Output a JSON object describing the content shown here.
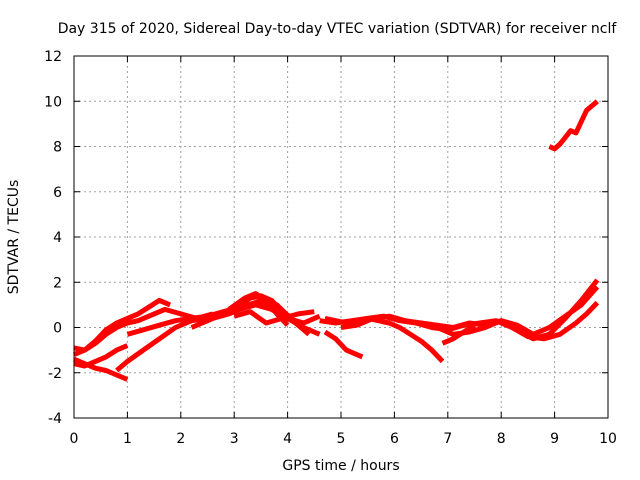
{
  "chart_data": {
    "type": "line",
    "title": "Day 315 of 2020, Sidereal Day-to-day VTEC variation (SDTVAR) for receiver nclf",
    "xlabel": "GPS time / hours",
    "ylabel": "SDTVAR / TECUs",
    "xlim": [
      0,
      10
    ],
    "ylim": [
      -4,
      12
    ],
    "xticks": [
      0,
      1,
      2,
      3,
      4,
      5,
      6,
      7,
      8,
      9,
      10
    ],
    "yticks": [
      -4,
      -2,
      0,
      2,
      4,
      6,
      8,
      10,
      12
    ],
    "grid": true,
    "color": "#ff0000",
    "series": [
      {
        "name": "trace-1",
        "x": [
          0.0,
          0.2,
          0.4,
          0.6,
          0.8,
          1.0,
          1.2,
          1.4,
          1.6,
          1.8
        ],
        "y": [
          -0.9,
          -1.0,
          -0.6,
          -0.1,
          0.2,
          0.4,
          0.6,
          0.9,
          1.2,
          1.0
        ]
      },
      {
        "name": "trace-2",
        "x": [
          0.0,
          0.2,
          0.4,
          0.6,
          0.8,
          1.0,
          1.2,
          1.4,
          1.7,
          2.0,
          2.3,
          2.6
        ],
        "y": [
          -1.2,
          -1.0,
          -0.7,
          -0.3,
          0.0,
          0.2,
          0.3,
          0.5,
          0.8,
          0.6,
          0.4,
          0.6
        ]
      },
      {
        "name": "trace-3",
        "x": [
          0.0,
          0.2,
          0.4,
          0.6,
          0.8,
          1.0
        ],
        "y": [
          -1.4,
          -1.6,
          -1.8,
          -1.9,
          -2.1,
          -2.3
        ]
      },
      {
        "name": "trace-4",
        "x": [
          0.0,
          0.2,
          0.4,
          0.6,
          0.8,
          1.0
        ],
        "y": [
          -1.6,
          -1.7,
          -1.5,
          -1.3,
          -1.0,
          -0.8
        ]
      },
      {
        "name": "trace-5",
        "x": [
          0.8,
          1.0,
          1.3,
          1.6,
          1.9,
          2.2,
          2.5,
          2.8,
          3.1,
          3.4,
          3.7,
          4.0,
          4.3,
          4.6
        ],
        "y": [
          -1.9,
          -1.5,
          -1.0,
          -0.5,
          0.0,
          0.3,
          0.4,
          0.6,
          0.8,
          1.0,
          0.8,
          0.4,
          0.2,
          0.5
        ]
      },
      {
        "name": "trace-6",
        "x": [
          1.0,
          1.3,
          1.6,
          1.9,
          2.2,
          2.5,
          2.8,
          3.1,
          3.4,
          3.7,
          4.0,
          4.3,
          4.6
        ],
        "y": [
          -0.3,
          -0.1,
          0.1,
          0.3,
          0.4,
          0.5,
          0.7,
          0.9,
          1.1,
          0.9,
          0.4,
          0.0,
          -0.3
        ]
      },
      {
        "name": "trace-7",
        "x": [
          2.2,
          2.5,
          2.8,
          3.1,
          3.3,
          3.5,
          3.7,
          3.9,
          4.1
        ],
        "y": [
          0.0,
          0.3,
          0.6,
          1.0,
          1.3,
          1.4,
          1.2,
          0.7,
          0.4
        ]
      },
      {
        "name": "trace-8",
        "x": [
          2.6,
          2.9,
          3.2,
          3.5,
          3.8,
          4.1,
          4.4
        ],
        "y": [
          0.4,
          0.6,
          0.9,
          1.2,
          1.0,
          0.3,
          -0.3
        ]
      },
      {
        "name": "trace-9",
        "x": [
          2.9,
          3.2,
          3.4,
          3.6,
          3.8,
          4.0
        ],
        "y": [
          0.8,
          1.3,
          1.5,
          1.2,
          0.6,
          0.1
        ]
      },
      {
        "name": "trace-10",
        "x": [
          3.0,
          3.3,
          3.6,
          3.9,
          4.2,
          4.5
        ],
        "y": [
          0.5,
          0.7,
          0.2,
          0.4,
          0.6,
          0.7
        ]
      },
      {
        "name": "trace-11",
        "x": [
          4.7,
          4.9,
          5.1,
          5.3,
          5.5,
          5.7,
          5.9,
          6.1,
          6.3,
          6.5,
          6.7,
          6.9
        ],
        "y": [
          0.4,
          0.3,
          0.2,
          0.3,
          0.4,
          0.3,
          0.2,
          0.0,
          -0.3,
          -0.6,
          -1.0,
          -1.5
        ]
      },
      {
        "name": "trace-12",
        "x": [
          4.7,
          4.9,
          5.1,
          5.4
        ],
        "y": [
          -0.2,
          -0.5,
          -1.0,
          -1.3
        ]
      },
      {
        "name": "trace-13",
        "x": [
          4.6,
          4.9,
          5.2,
          5.5,
          5.8,
          6.1,
          6.4,
          6.7,
          7.0,
          7.3,
          7.6,
          7.9,
          8.2,
          8.5,
          8.8,
          9.1,
          9.4,
          9.6,
          9.8
        ],
        "y": [
          0.3,
          0.2,
          0.3,
          0.4,
          0.5,
          0.3,
          0.2,
          0.0,
          -0.1,
          0.1,
          0.2,
          0.3,
          0.0,
          -0.4,
          -0.5,
          -0.3,
          0.2,
          0.6,
          1.1
        ]
      },
      {
        "name": "trace-14",
        "x": [
          5.0,
          5.3,
          5.6,
          5.9,
          6.2,
          6.5,
          6.8,
          7.1,
          7.4,
          7.7,
          8.0,
          8.3,
          8.6,
          8.9,
          9.2,
          9.5,
          9.8
        ],
        "y": [
          0.0,
          0.1,
          0.4,
          0.5,
          0.3,
          0.2,
          0.1,
          0.0,
          0.2,
          0.1,
          0.3,
          -0.1,
          -0.5,
          -0.3,
          0.4,
          1.2,
          2.1
        ]
      },
      {
        "name": "trace-15",
        "x": [
          6.5,
          6.8,
          7.1,
          7.4,
          7.7,
          8.0,
          8.3,
          8.6,
          8.9,
          9.2,
          9.5,
          9.8
        ],
        "y": [
          0.2,
          0.0,
          -0.3,
          -0.2,
          0.0,
          0.3,
          0.1,
          -0.3,
          0.0,
          0.5,
          1.0,
          1.8
        ]
      },
      {
        "name": "trace-16",
        "x": [
          6.9,
          7.1,
          7.3,
          7.5
        ],
        "y": [
          -0.7,
          -0.5,
          -0.2,
          0.1
        ]
      },
      {
        "name": "trace-17",
        "x": [
          8.9,
          9.0,
          9.1,
          9.2,
          9.3,
          9.4,
          9.5,
          9.6,
          9.7,
          9.8
        ],
        "y": [
          8.0,
          7.9,
          8.1,
          8.4,
          8.7,
          8.6,
          9.1,
          9.6,
          9.8,
          10.0
        ]
      }
    ]
  }
}
